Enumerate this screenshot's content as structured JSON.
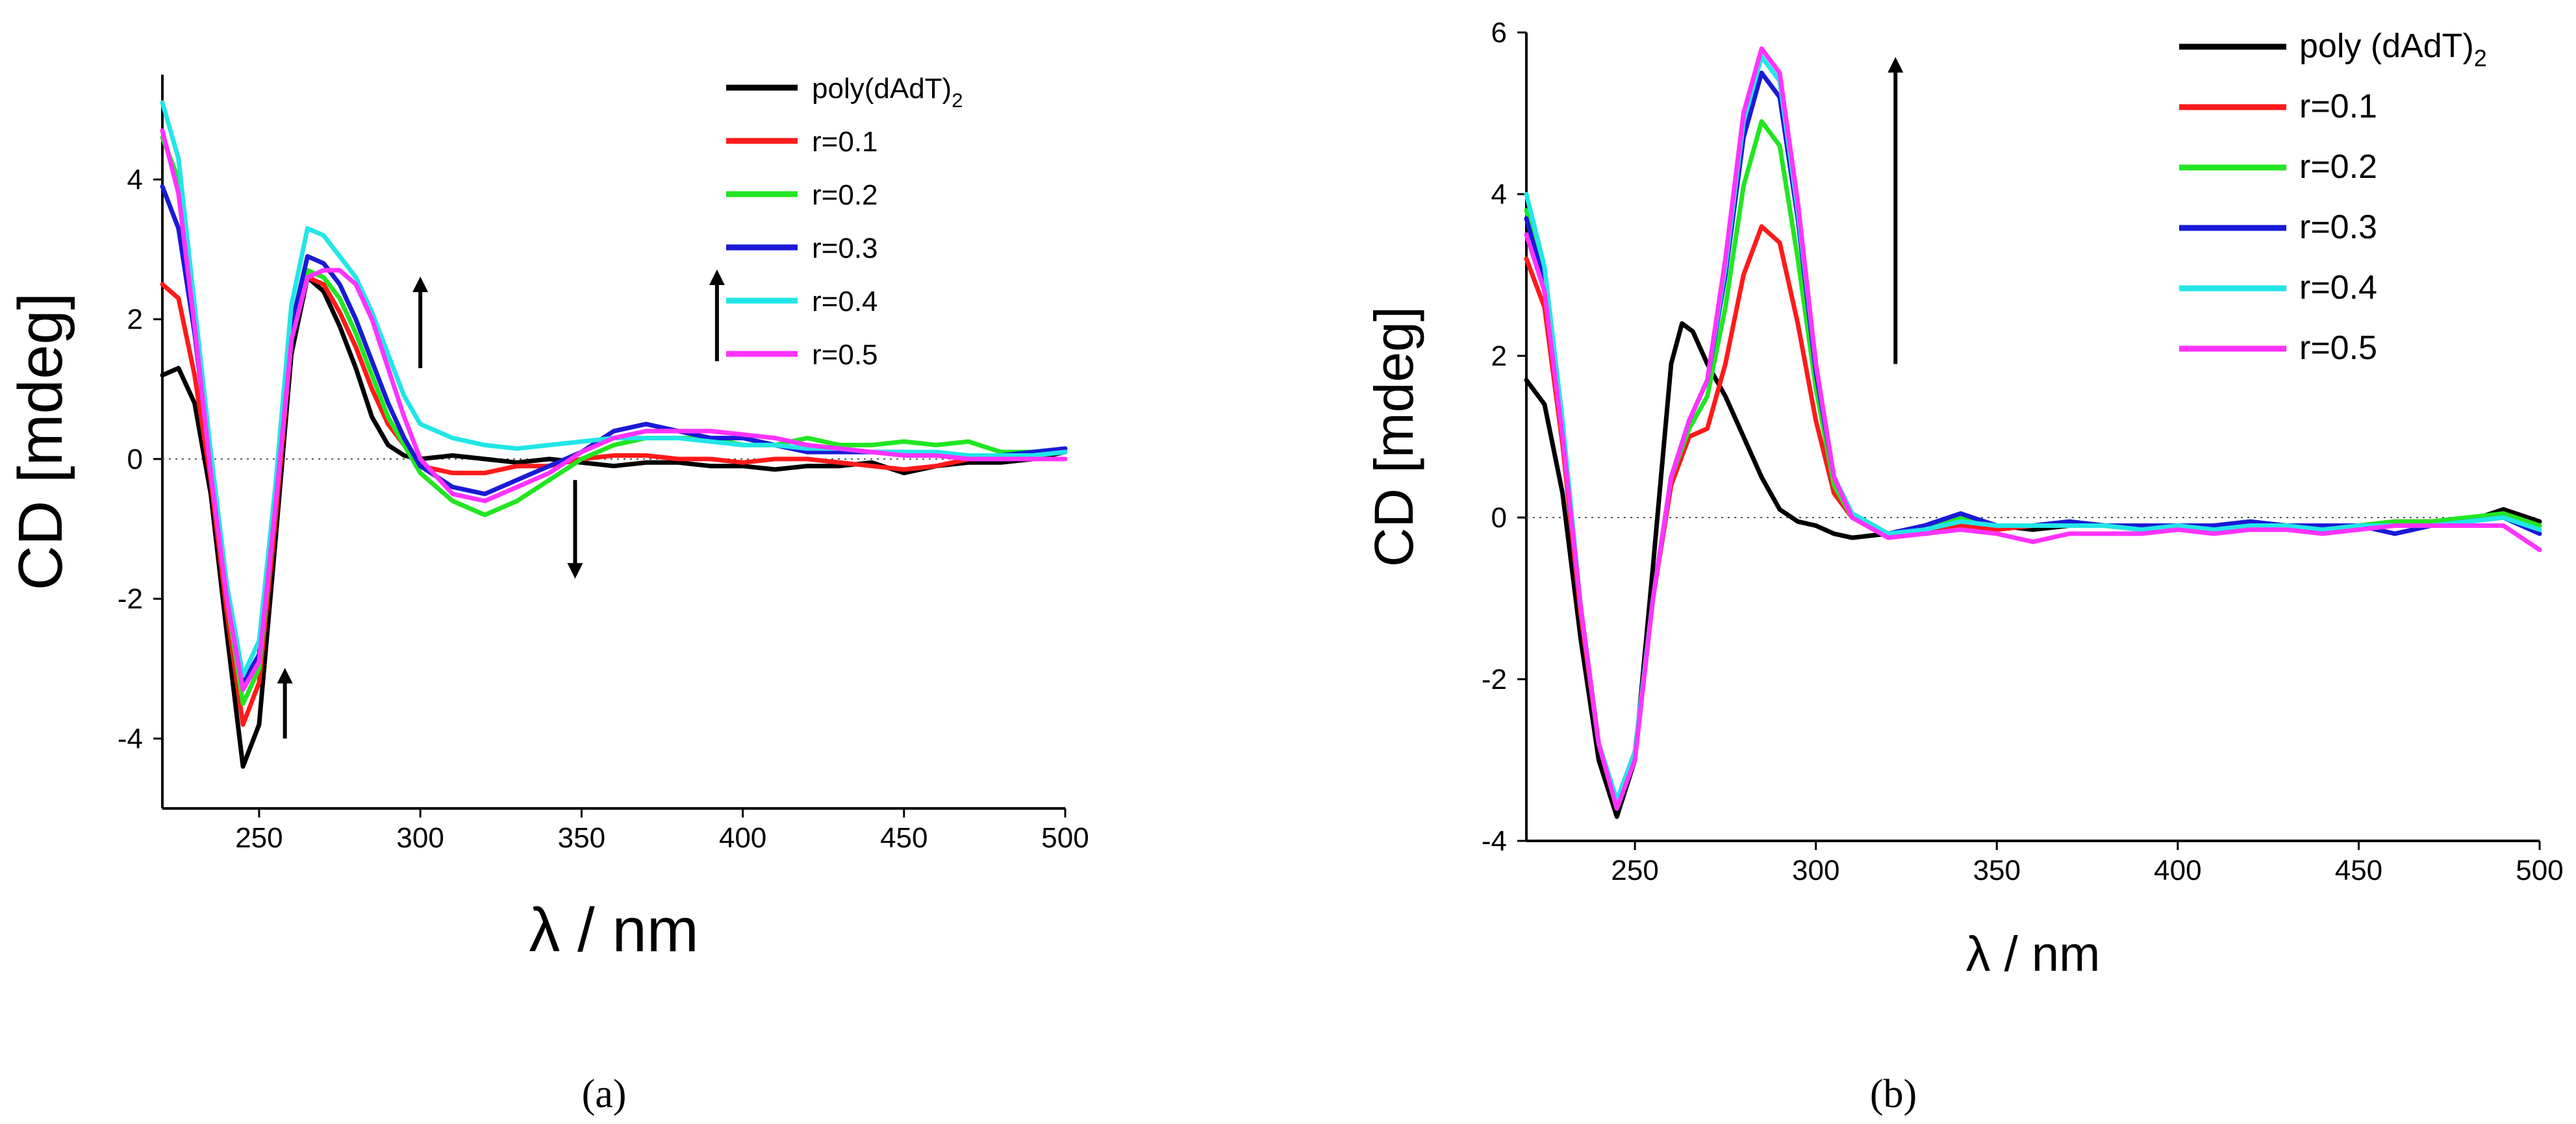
{
  "figure": {
    "caption_a": "(a)",
    "caption_b": "(b)"
  },
  "colors": {
    "poly": "#000000",
    "r01": "#ff1a1a",
    "r02": "#22e622",
    "r03": "#1a1ad6",
    "r04": "#22e6e6",
    "r05": "#ff33ff"
  },
  "chart_data": [
    {
      "id": "a",
      "type": "line",
      "title": "",
      "xlabel": "λ / nm",
      "ylabel": "CD [mdeg]",
      "xlim": [
        220,
        500
      ],
      "ylim": [
        -5,
        5.5
      ],
      "xticks": [
        250,
        300,
        350,
        400,
        450,
        500
      ],
      "yticks": [
        -4,
        -2,
        0,
        2,
        4
      ],
      "zero_line": true,
      "legend_position": "top-right",
      "arrows": [
        {
          "x": 258,
          "from": -4.0,
          "to": -3.1,
          "direction": "up"
        },
        {
          "x": 300,
          "from": 1.3,
          "to": 2.5,
          "direction": "up"
        },
        {
          "x": 348,
          "from": -0.3,
          "to": -1.6,
          "direction": "down"
        },
        {
          "x": 392,
          "from": 1.4,
          "to": 2.6,
          "direction": "up"
        }
      ],
      "series": [
        {
          "name": "poly(dAdT)",
          "sub": "2",
          "color_key": "poly",
          "x": [
            220,
            225,
            230,
            235,
            240,
            245,
            250,
            255,
            260,
            265,
            270,
            275,
            280,
            285,
            290,
            295,
            300,
            310,
            320,
            330,
            340,
            350,
            360,
            370,
            380,
            390,
            400,
            410,
            420,
            430,
            440,
            450,
            460,
            470,
            480,
            490,
            500
          ],
          "y": [
            1.2,
            1.3,
            0.8,
            -0.5,
            -2.5,
            -4.4,
            -3.8,
            -1.2,
            1.5,
            2.6,
            2.4,
            1.9,
            1.3,
            0.6,
            0.2,
            0.05,
            0.0,
            0.05,
            0.0,
            -0.05,
            0.0,
            -0.05,
            -0.1,
            -0.05,
            -0.05,
            -0.1,
            -0.1,
            -0.15,
            -0.1,
            -0.1,
            -0.05,
            -0.2,
            -0.1,
            -0.05,
            -0.05,
            0.0,
            0.1
          ]
        },
        {
          "name": "r=0.1",
          "color_key": "r01",
          "x": [
            220,
            225,
            230,
            235,
            240,
            245,
            250,
            255,
            260,
            265,
            270,
            275,
            280,
            285,
            290,
            295,
            300,
            310,
            320,
            330,
            340,
            350,
            360,
            370,
            380,
            390,
            400,
            410,
            420,
            430,
            440,
            450,
            460,
            470,
            480,
            490,
            500
          ],
          "y": [
            2.5,
            2.3,
            1.2,
            -0.3,
            -2.2,
            -3.8,
            -3.2,
            -0.9,
            1.7,
            2.6,
            2.5,
            2.1,
            1.6,
            1.0,
            0.5,
            0.2,
            -0.1,
            -0.2,
            -0.2,
            -0.1,
            -0.1,
            0.0,
            0.05,
            0.05,
            0.0,
            0.0,
            -0.05,
            0.0,
            0.0,
            -0.05,
            -0.1,
            -0.15,
            -0.1,
            0.0,
            0.0,
            0.05,
            0.1
          ]
        },
        {
          "name": "r=0.2",
          "color_key": "r02",
          "x": [
            220,
            225,
            230,
            235,
            240,
            245,
            250,
            255,
            260,
            265,
            270,
            275,
            280,
            285,
            290,
            295,
            300,
            310,
            320,
            330,
            340,
            350,
            360,
            370,
            380,
            390,
            400,
            410,
            420,
            430,
            440,
            450,
            460,
            470,
            480,
            490,
            500
          ],
          "y": [
            4.6,
            4.0,
            2.0,
            -0.1,
            -2.0,
            -3.5,
            -3.0,
            -0.7,
            1.7,
            2.7,
            2.6,
            2.3,
            1.8,
            1.2,
            0.6,
            0.2,
            -0.2,
            -0.6,
            -0.8,
            -0.6,
            -0.3,
            0.0,
            0.2,
            0.3,
            0.3,
            0.3,
            0.2,
            0.2,
            0.3,
            0.2,
            0.2,
            0.25,
            0.2,
            0.25,
            0.1,
            0.1,
            0.15
          ]
        },
        {
          "name": "r=0.3",
          "color_key": "r03",
          "x": [
            220,
            225,
            230,
            235,
            240,
            245,
            250,
            255,
            260,
            265,
            270,
            275,
            280,
            285,
            290,
            295,
            300,
            310,
            320,
            330,
            340,
            350,
            360,
            370,
            380,
            390,
            400,
            410,
            420,
            430,
            440,
            450,
            460,
            470,
            480,
            490,
            500
          ],
          "y": [
            3.9,
            3.3,
            1.8,
            -0.1,
            -1.9,
            -3.2,
            -2.8,
            -0.5,
            1.9,
            2.9,
            2.8,
            2.5,
            2.0,
            1.4,
            0.8,
            0.3,
            -0.1,
            -0.4,
            -0.5,
            -0.3,
            -0.1,
            0.1,
            0.4,
            0.5,
            0.4,
            0.3,
            0.3,
            0.2,
            0.1,
            0.1,
            0.1,
            0.1,
            0.05,
            0.05,
            0.05,
            0.1,
            0.15
          ]
        },
        {
          "name": "r=0.4",
          "color_key": "r04",
          "x": [
            220,
            225,
            230,
            235,
            240,
            245,
            250,
            255,
            260,
            265,
            270,
            275,
            280,
            285,
            290,
            295,
            300,
            310,
            320,
            330,
            340,
            350,
            360,
            370,
            380,
            390,
            400,
            410,
            420,
            430,
            440,
            450,
            460,
            470,
            480,
            490,
            500
          ],
          "y": [
            5.1,
            4.3,
            2.2,
            0.1,
            -1.8,
            -3.1,
            -2.6,
            -0.4,
            2.2,
            3.3,
            3.2,
            2.9,
            2.6,
            2.1,
            1.5,
            0.9,
            0.5,
            0.3,
            0.2,
            0.15,
            0.2,
            0.25,
            0.3,
            0.3,
            0.3,
            0.25,
            0.2,
            0.2,
            0.15,
            0.15,
            0.1,
            0.1,
            0.1,
            0.05,
            0.05,
            0.05,
            0.1
          ]
        },
        {
          "name": "r=0.5",
          "color_key": "r05",
          "x": [
            220,
            225,
            230,
            235,
            240,
            245,
            250,
            255,
            260,
            265,
            270,
            275,
            280,
            285,
            290,
            295,
            300,
            310,
            320,
            330,
            340,
            350,
            360,
            370,
            380,
            390,
            400,
            410,
            420,
            430,
            440,
            450,
            460,
            470,
            480,
            490,
            500
          ],
          "y": [
            4.7,
            3.8,
            1.9,
            -0.2,
            -2.0,
            -3.3,
            -2.9,
            -0.7,
            1.7,
            2.6,
            2.7,
            2.7,
            2.5,
            2.0,
            1.3,
            0.6,
            0.0,
            -0.5,
            -0.6,
            -0.4,
            -0.2,
            0.1,
            0.3,
            0.4,
            0.4,
            0.4,
            0.35,
            0.3,
            0.2,
            0.15,
            0.1,
            0.05,
            0.05,
            0.0,
            0.0,
            0.0,
            0.0
          ]
        }
      ]
    },
    {
      "id": "b",
      "type": "line",
      "title": "",
      "xlabel": "λ / nm",
      "ylabel": "CD [mdeg]",
      "xlim": [
        220,
        500
      ],
      "ylim": [
        -4,
        6
      ],
      "xticks": [
        250,
        300,
        350,
        400,
        450,
        500
      ],
      "yticks": [
        -4,
        -2,
        0,
        2,
        4,
        6
      ],
      "zero_line": true,
      "legend_position": "top-right",
      "arrows": [
        {
          "x": 322,
          "from": 1.9,
          "to": 5.6,
          "direction": "up"
        }
      ],
      "series": [
        {
          "name": "poly (dAdT)",
          "sub": "2",
          "color_key": "poly",
          "x": [
            220,
            225,
            230,
            235,
            240,
            245,
            250,
            255,
            260,
            263,
            266,
            270,
            275,
            280,
            285,
            290,
            295,
            300,
            305,
            310,
            320,
            330,
            340,
            350,
            360,
            370,
            380,
            390,
            400,
            410,
            420,
            430,
            440,
            450,
            460,
            470,
            480,
            490,
            500
          ],
          "y": [
            1.7,
            1.4,
            0.3,
            -1.5,
            -3.0,
            -3.7,
            -3.0,
            -0.6,
            1.9,
            2.4,
            2.3,
            1.9,
            1.5,
            1.0,
            0.5,
            0.1,
            -0.05,
            -0.1,
            -0.2,
            -0.25,
            -0.2,
            -0.1,
            -0.1,
            -0.1,
            -0.15,
            -0.1,
            -0.1,
            -0.15,
            -0.1,
            -0.15,
            -0.1,
            -0.1,
            -0.15,
            -0.1,
            -0.05,
            -0.05,
            -0.05,
            0.1,
            -0.05
          ]
        },
        {
          "name": "r=0.1",
          "color_key": "r01",
          "x": [
            220,
            225,
            230,
            235,
            240,
            245,
            250,
            255,
            260,
            265,
            270,
            275,
            280,
            285,
            290,
            295,
            300,
            305,
            310,
            320,
            330,
            340,
            350,
            360,
            370,
            380,
            390,
            400,
            410,
            420,
            430,
            440,
            450,
            460,
            470,
            480,
            490,
            500
          ],
          "y": [
            3.2,
            2.6,
            0.9,
            -1.2,
            -2.8,
            -3.5,
            -2.9,
            -1.0,
            0.4,
            1.0,
            1.1,
            1.9,
            3.0,
            3.6,
            3.4,
            2.4,
            1.2,
            0.3,
            0.0,
            -0.25,
            -0.15,
            -0.1,
            -0.15,
            -0.1,
            -0.1,
            -0.1,
            -0.15,
            -0.1,
            -0.15,
            -0.1,
            -0.1,
            -0.15,
            -0.1,
            -0.05,
            -0.05,
            -0.05,
            0.05,
            -0.1
          ]
        },
        {
          "name": "r=0.2",
          "color_key": "r02",
          "x": [
            220,
            225,
            230,
            235,
            240,
            245,
            250,
            255,
            260,
            265,
            270,
            275,
            280,
            285,
            290,
            295,
            300,
            305,
            310,
            320,
            330,
            340,
            350,
            360,
            370,
            380,
            390,
            400,
            410,
            420,
            430,
            440,
            450,
            460,
            470,
            480,
            490,
            500
          ],
          "y": [
            3.8,
            3.0,
            1.1,
            -1.1,
            -2.8,
            -3.5,
            -2.9,
            -1.0,
            0.5,
            1.1,
            1.5,
            2.6,
            4.1,
            4.9,
            4.6,
            3.2,
            1.6,
            0.4,
            0.0,
            -0.2,
            -0.1,
            0.0,
            -0.1,
            -0.1,
            -0.05,
            -0.1,
            -0.1,
            -0.1,
            -0.1,
            -0.05,
            -0.1,
            -0.1,
            -0.1,
            -0.05,
            -0.05,
            0.0,
            0.05,
            -0.1
          ]
        },
        {
          "name": "r=0.3",
          "color_key": "r03",
          "x": [
            220,
            225,
            230,
            235,
            240,
            245,
            250,
            255,
            260,
            265,
            270,
            275,
            280,
            285,
            290,
            295,
            300,
            305,
            310,
            320,
            330,
            340,
            350,
            360,
            370,
            380,
            390,
            400,
            410,
            420,
            430,
            440,
            450,
            460,
            470,
            480,
            490,
            500
          ],
          "y": [
            3.7,
            2.9,
            1.1,
            -1.1,
            -2.8,
            -3.5,
            -2.9,
            -1.0,
            0.5,
            1.2,
            1.7,
            3.0,
            4.7,
            5.5,
            5.2,
            3.7,
            1.8,
            0.5,
            0.05,
            -0.2,
            -0.1,
            0.05,
            -0.1,
            -0.1,
            -0.05,
            -0.1,
            -0.1,
            -0.1,
            -0.1,
            -0.05,
            -0.1,
            -0.1,
            -0.1,
            -0.2,
            -0.1,
            -0.05,
            0.0,
            -0.2
          ]
        },
        {
          "name": "r=0.4",
          "color_key": "r04",
          "x": [
            220,
            225,
            230,
            235,
            240,
            245,
            250,
            255,
            260,
            265,
            270,
            275,
            280,
            285,
            290,
            295,
            300,
            305,
            310,
            320,
            330,
            340,
            350,
            360,
            370,
            380,
            390,
            400,
            410,
            420,
            430,
            440,
            450,
            460,
            470,
            480,
            490,
            500
          ],
          "y": [
            4.0,
            3.1,
            1.2,
            -1.1,
            -2.8,
            -3.5,
            -2.9,
            -1.0,
            0.5,
            1.2,
            1.7,
            3.1,
            4.9,
            5.7,
            5.4,
            3.8,
            1.9,
            0.5,
            0.05,
            -0.2,
            -0.15,
            -0.05,
            -0.1,
            -0.1,
            -0.1,
            -0.1,
            -0.15,
            -0.1,
            -0.15,
            -0.1,
            -0.1,
            -0.15,
            -0.1,
            -0.1,
            -0.1,
            -0.05,
            0.0,
            -0.15
          ]
        },
        {
          "name": "r=0.5",
          "color_key": "r05",
          "x": [
            220,
            225,
            230,
            235,
            240,
            245,
            250,
            255,
            260,
            265,
            270,
            275,
            280,
            285,
            290,
            295,
            300,
            305,
            310,
            320,
            330,
            340,
            350,
            360,
            370,
            380,
            390,
            400,
            410,
            420,
            430,
            440,
            450,
            460,
            470,
            480,
            490,
            500
          ],
          "y": [
            3.5,
            2.8,
            1.0,
            -1.1,
            -2.8,
            -3.6,
            -3.0,
            -1.0,
            0.5,
            1.2,
            1.7,
            3.2,
            5.0,
            5.8,
            5.5,
            3.9,
            1.9,
            0.5,
            0.0,
            -0.25,
            -0.2,
            -0.15,
            -0.2,
            -0.3,
            -0.2,
            -0.2,
            -0.2,
            -0.15,
            -0.2,
            -0.15,
            -0.15,
            -0.2,
            -0.15,
            -0.1,
            -0.1,
            -0.1,
            -0.1,
            -0.4
          ]
        }
      ]
    }
  ]
}
